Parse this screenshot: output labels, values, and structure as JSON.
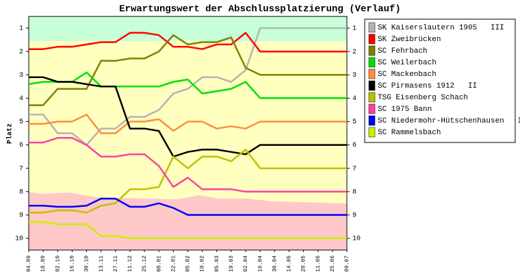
{
  "chart_data": {
    "type": "line",
    "title": "Erwartungswert der Abschlussplatzierung (Verlauf)",
    "y_label": "Platz",
    "categories": [
      "04.09",
      "18.09",
      "02.10",
      "16.10",
      "30.10",
      "13.11",
      "27.11",
      "11.12",
      "25.12",
      "08.01",
      "22.01",
      "05.02",
      "19.02",
      "05.03",
      "19.03",
      "02.04",
      "16.04",
      "30.04",
      "14.05",
      "28.05",
      "11.06",
      "25.06",
      "09.07"
    ],
    "ylim": [
      0.5,
      10.5
    ],
    "y_inverted": true,
    "yticks": [
      1,
      2,
      3,
      4,
      5,
      6,
      7,
      8,
      9,
      10
    ],
    "series": [
      {
        "name": "SK Kaiserslautern 1905   III",
        "color": "#b4b4b4",
        "values": [
          4.7,
          4.7,
          5.5,
          5.5,
          6.0,
          5.3,
          5.3,
          4.8,
          4.8,
          4.5,
          3.8,
          3.6,
          3.1,
          3.1,
          3.3,
          2.8,
          1.0,
          1.0,
          1.0,
          1.0,
          1.0,
          1.0,
          1.0
        ]
      },
      {
        "name": "SK Zweibrücken",
        "color": "#ff0000",
        "values": [
          1.9,
          1.9,
          1.8,
          1.8,
          1.7,
          1.6,
          1.6,
          1.2,
          1.2,
          1.3,
          1.8,
          1.8,
          1.9,
          1.7,
          1.7,
          1.2,
          2.0,
          2.0,
          2.0,
          2.0,
          2.0,
          2.0,
          2.0
        ]
      },
      {
        "name": "SC Fehrbach",
        "color": "#808000",
        "values": [
          4.3,
          4.3,
          3.6,
          3.6,
          3.6,
          2.4,
          2.4,
          2.3,
          2.3,
          2.0,
          1.3,
          1.7,
          1.6,
          1.6,
          1.4,
          2.7,
          3.0,
          3.0,
          3.0,
          3.0,
          3.0,
          3.0,
          3.0
        ]
      },
      {
        "name": "SC Weilerbach",
        "color": "#00e000",
        "values": [
          3.4,
          3.3,
          3.3,
          3.3,
          2.9,
          3.5,
          3.5,
          3.5,
          3.5,
          3.5,
          3.3,
          3.2,
          3.8,
          3.7,
          3.6,
          3.3,
          4.0,
          4.0,
          4.0,
          4.0,
          4.0,
          4.0,
          4.0
        ]
      },
      {
        "name": "SC Mackenbach",
        "color": "#ff8c40",
        "values": [
          5.1,
          5.1,
          5.0,
          5.0,
          4.7,
          5.5,
          5.5,
          5.0,
          5.0,
          4.9,
          5.4,
          5.0,
          5.0,
          5.3,
          5.2,
          5.3,
          5.0,
          5.0,
          5.0,
          5.0,
          5.0,
          5.0,
          5.0
        ]
      },
      {
        "name": "SC Pirmasens 1912   II",
        "color": "#000000",
        "values": [
          3.1,
          3.1,
          3.3,
          3.3,
          3.4,
          3.5,
          3.5,
          5.3,
          5.3,
          5.4,
          6.5,
          6.3,
          6.2,
          6.2,
          6.3,
          6.4,
          6.0,
          6.0,
          6.0,
          6.0,
          6.0,
          6.0,
          6.0
        ]
      },
      {
        "name": "TSG Eisenberg Schach",
        "color": "#c0c000",
        "values": [
          8.9,
          8.9,
          8.8,
          8.8,
          8.9,
          8.6,
          8.5,
          7.9,
          7.9,
          7.8,
          6.5,
          7.0,
          6.5,
          6.5,
          6.7,
          6.2,
          7.0,
          7.0,
          7.0,
          7.0,
          7.0,
          7.0,
          7.0
        ]
      },
      {
        "name": "SC 1975 Bann",
        "color": "#ff40a0",
        "values": [
          5.9,
          5.9,
          5.7,
          5.7,
          6.0,
          6.5,
          6.5,
          6.4,
          6.4,
          6.9,
          7.8,
          7.4,
          7.9,
          7.9,
          7.9,
          8.0,
          8.0,
          8.0,
          8.0,
          8.0,
          8.0,
          8.0,
          8.0
        ]
      },
      {
        "name": "SC Niedermohr-Hütschenhausen   II",
        "color": "#0000ff",
        "values": [
          8.6,
          8.6,
          8.65,
          8.65,
          8.6,
          8.3,
          8.3,
          8.65,
          8.65,
          8.5,
          8.7,
          9.0,
          9.0,
          9.0,
          9.0,
          9.0,
          9.0,
          9.0,
          9.0,
          9.0,
          9.0,
          9.0,
          9.0
        ]
      },
      {
        "name": "SC Rammelsbach",
        "color": "#c8f000",
        "values": [
          9.3,
          9.3,
          9.4,
          9.4,
          9.4,
          9.9,
          9.9,
          10.0,
          10.0,
          10.0,
          10.0,
          10.0,
          10.0,
          10.0,
          10.0,
          10.0,
          10.0,
          10.0,
          10.0,
          10.0,
          10.0,
          10.0,
          10.0
        ]
      }
    ]
  }
}
